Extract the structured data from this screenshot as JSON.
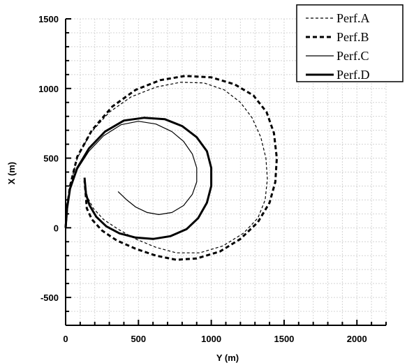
{
  "chart_data": {
    "type": "line",
    "xlabel": "Y (m)",
    "ylabel": "X (m)",
    "xlim": [
      0,
      2200
    ],
    "ylim": [
      -700,
      1500
    ],
    "xticks": [
      "0",
      "500",
      "1000",
      "1500",
      "2000"
    ],
    "yticks": [
      "-500",
      "0",
      "500",
      "1000",
      "1500"
    ],
    "grid": true,
    "legend_position": "top-right",
    "series": [
      {
        "name": "Perf.A",
        "style": "thin-dashed",
        "x": [
          0,
          10,
          30,
          80,
          170,
          300,
          450,
          620,
          790,
          950,
          1090,
          1200,
          1280,
          1340,
          1375,
          1385,
          1370,
          1320,
          1220,
          1080,
          920,
          760,
          620,
          480,
          360,
          260,
          190,
          150,
          140
        ],
        "y": [
          0,
          150,
          300,
          500,
          680,
          830,
          940,
          1010,
          1045,
          1040,
          990,
          900,
          790,
          650,
          500,
          350,
          200,
          70,
          -40,
          -130,
          -180,
          -180,
          -140,
          -80,
          -10,
          60,
          140,
          220,
          270
        ]
      },
      {
        "name": "Perf.B",
        "style": "thick-dashed",
        "x": [
          0,
          10,
          30,
          80,
          180,
          320,
          480,
          650,
          820,
          1000,
          1160,
          1290,
          1380,
          1430,
          1450,
          1440,
          1400,
          1320,
          1200,
          1060,
          900,
          760,
          620,
          480,
          350,
          250,
          180,
          145,
          140,
          130
        ],
        "y": [
          0,
          150,
          300,
          510,
          700,
          870,
          990,
          1060,
          1090,
          1080,
          1030,
          950,
          830,
          680,
          500,
          330,
          180,
          40,
          -80,
          -170,
          -220,
          -230,
          -200,
          -150,
          -90,
          -20,
          60,
          140,
          210,
          340
        ]
      },
      {
        "name": "Perf.C",
        "style": "thin-solid",
        "x": [
          0,
          10,
          30,
          80,
          160,
          260,
          380,
          500,
          620,
          730,
          810,
          870,
          900,
          900,
          870,
          810,
          730,
          640,
          560,
          480,
          420,
          380,
          360
        ],
        "y": [
          0,
          140,
          280,
          420,
          550,
          660,
          740,
          765,
          745,
          690,
          620,
          530,
          430,
          330,
          240,
          160,
          110,
          95,
          110,
          150,
          200,
          240,
          260
        ]
      },
      {
        "name": "Perf.D",
        "style": "thick-solid",
        "x": [
          0,
          10,
          30,
          80,
          160,
          270,
          400,
          540,
          680,
          800,
          900,
          970,
          1000,
          1000,
          970,
          910,
          830,
          720,
          600,
          480,
          370,
          280,
          210,
          165,
          140,
          130
        ],
        "y": [
          0,
          140,
          280,
          430,
          570,
          690,
          770,
          790,
          780,
          730,
          650,
          550,
          430,
          300,
          180,
          70,
          -10,
          -60,
          -80,
          -70,
          -40,
          10,
          80,
          160,
          240,
          360
        ]
      }
    ]
  }
}
